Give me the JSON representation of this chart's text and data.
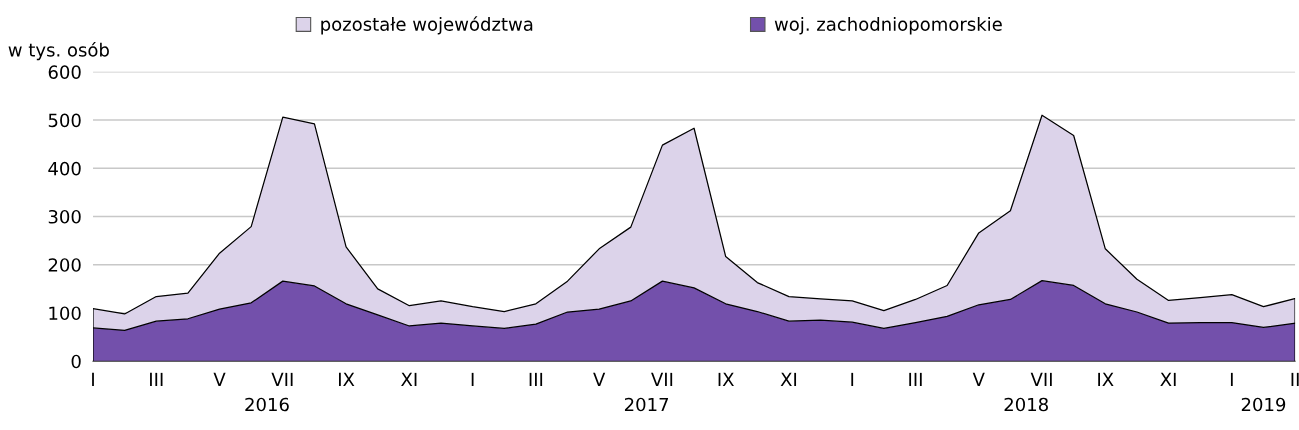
{
  "chart_data": {
    "type": "area",
    "stacked": true,
    "ylabel": "w tys. osób",
    "categories": [
      "I",
      null,
      "III",
      null,
      "V",
      null,
      "VII",
      null,
      "IX",
      null,
      "XI",
      null,
      "I",
      null,
      "III",
      null,
      "V",
      null,
      "VII",
      null,
      "IX",
      null,
      "XI",
      null,
      "I",
      null,
      "III",
      null,
      "V",
      null,
      "VII",
      null,
      "IX",
      null,
      "XI",
      null,
      "I",
      null,
      "II"
    ],
    "series": [
      {
        "name": "woj. zachodniopomorskie",
        "color": "#7350ab",
        "values": [
          69,
          64,
          83,
          88,
          108,
          121,
          166,
          156,
          119,
          96,
          73,
          79,
          73,
          68,
          77,
          102,
          108,
          125,
          166,
          152,
          119,
          103,
          83,
          85,
          81,
          68,
          80,
          93,
          117,
          128,
          167,
          157,
          119,
          102,
          79,
          80,
          80,
          70,
          79
        ]
      },
      {
        "name": "pozostałe województwa",
        "color": "#dcd3ea",
        "values": [
          40,
          34,
          51,
          53,
          116,
          158,
          340,
          336,
          118,
          54,
          42,
          46,
          40,
          35,
          42,
          64,
          125,
          153,
          282,
          331,
          98,
          60,
          51,
          44,
          44,
          37,
          48,
          64,
          149,
          184,
          343,
          311,
          114,
          68,
          47,
          52,
          58,
          43,
          51
        ]
      }
    ],
    "ylim": [
      0,
      600
    ],
    "yticks": [
      0,
      100,
      200,
      300,
      400,
      500,
      600
    ],
    "grid": "y",
    "legend": "top",
    "annotations": [
      "2016",
      "2017",
      "2018",
      "2019"
    ]
  }
}
